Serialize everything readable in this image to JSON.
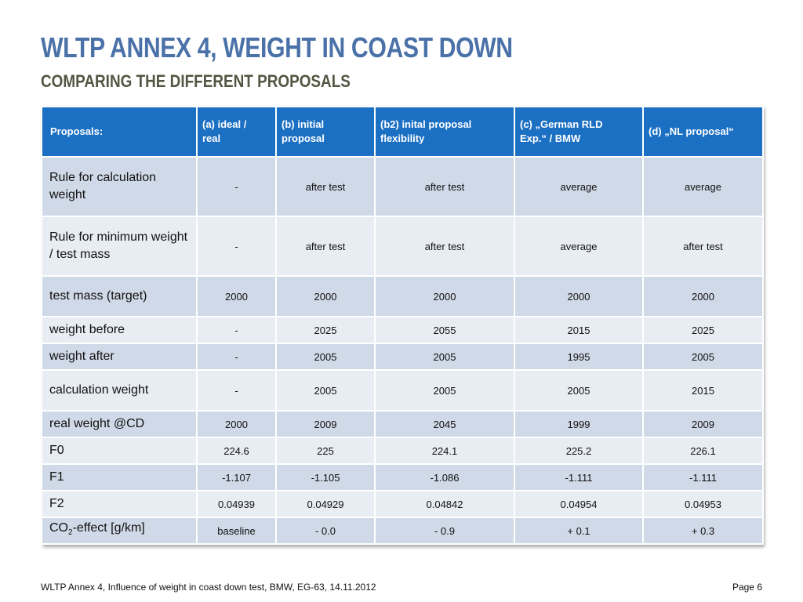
{
  "title": "WLTP ANNEX 4, WEIGHT IN COAST DOWN",
  "subtitle": "COMPARING THE DIFFERENT PROPOSALS",
  "table": {
    "header": {
      "col0": "Proposals:",
      "col1_line1": "(a) ideal /",
      "col1_line2": "real",
      "col2_line1": "(b) initial",
      "col2_line2": "proposal",
      "col3_line1": "(b2) inital proposal",
      "col3_line2": "flexibility",
      "col4_line1": "(c) „German RLD",
      "col4_line2": "Exp.“ / BMW",
      "col5": "(d) „NL proposal“"
    },
    "rows": [
      {
        "label_line1": "Rule for calculation",
        "label_line2": "weight",
        "cells": [
          "-",
          "after test",
          "after test",
          "average",
          "average"
        ]
      },
      {
        "label_line1": "Rule for minimum weight",
        "label_line2": "/ test mass",
        "cells": [
          "-",
          "after test",
          "after test",
          "average",
          "after test"
        ]
      },
      {
        "label_line1": "test mass (target)",
        "label_line2": "",
        "cells": [
          "2000",
          "2000",
          "2000",
          "2000",
          "2000"
        ]
      },
      {
        "label_line1": "weight before",
        "label_line2": "",
        "cells": [
          "-",
          "2025",
          "2055",
          "2015",
          "2025"
        ]
      },
      {
        "label_line1": "weight after",
        "label_line2": "",
        "cells": [
          "-",
          "2005",
          "2005",
          "1995",
          "2005"
        ]
      },
      {
        "label_line1": "calculation weight",
        "label_line2": "",
        "cells": [
          "-",
          "2005",
          "2005",
          "2005",
          "2015"
        ]
      },
      {
        "label_line1": "real weight @CD",
        "label_line2": "",
        "cells": [
          "2000",
          "2009",
          "2045",
          "1999",
          "2009"
        ]
      },
      {
        "label_line1": "F0",
        "label_line2": "",
        "cells": [
          "224.6",
          "225",
          "224.1",
          "225.2",
          "226.1"
        ]
      },
      {
        "label_line1": "F1",
        "label_line2": "",
        "cells": [
          "-1.107",
          "-1.105",
          "-1.086",
          "-1.111",
          "-1.111"
        ]
      },
      {
        "label_line1": "F2",
        "label_line2": "",
        "cells": [
          "0.04939",
          "0.04929",
          "0.04842",
          "0.04954",
          "0.04953"
        ]
      }
    ],
    "co2_row": {
      "label_pre": "CO",
      "label_sub": "2",
      "label_post": "-effect [g/km]",
      "cells": [
        "baseline",
        "- 0.0",
        "- 0.9",
        "+ 0.1",
        "+ 0.3"
      ]
    }
  },
  "footer": {
    "left": "WLTP Annex 4, Influence of weight in coast down test, BMW, EG-63, 14.11.2012",
    "right": "Page 6"
  },
  "colors": {
    "title": "#4a72a8",
    "subtitle": "#555544",
    "header_bg": "#1c70c4",
    "row_dark": "#d0d9e7",
    "row_light": "#e8ecf3"
  }
}
